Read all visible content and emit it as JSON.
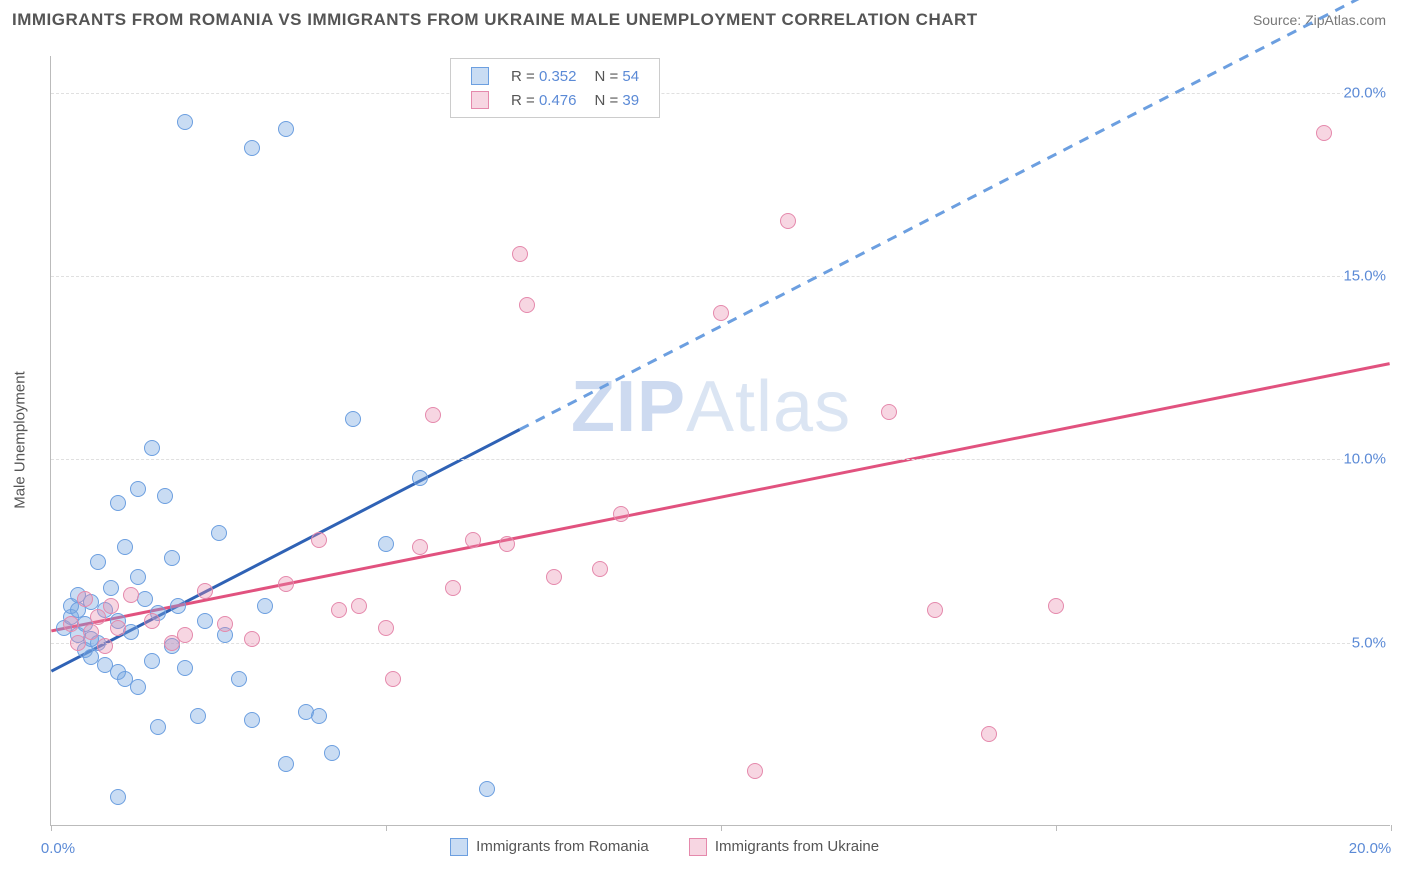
{
  "title": "IMMIGRANTS FROM ROMANIA VS IMMIGRANTS FROM UKRAINE MALE UNEMPLOYMENT CORRELATION CHART",
  "source": "Source: ZipAtlas.com",
  "y_axis_label": "Male Unemployment",
  "watermark_main": "ZIP",
  "watermark_sub": "Atlas",
  "chart": {
    "type": "scatter",
    "x_min": 0.0,
    "x_max": 20.0,
    "y_min": 0.0,
    "y_max": 21.0,
    "y_ticks": [
      5.0,
      10.0,
      15.0,
      20.0
    ],
    "y_tick_labels": [
      "5.0%",
      "10.0%",
      "15.0%",
      "20.0%"
    ],
    "x_ticks": [
      0.0,
      5.0,
      10.0,
      15.0,
      20.0
    ],
    "x_tick_label_left": "0.0%",
    "x_tick_label_right": "20.0%",
    "background_color": "#ffffff",
    "grid_color": "#e0e0e0",
    "axis_color": "#bbbbbb",
    "tick_label_color": "#5b8ad6",
    "point_radius": 8,
    "series": [
      {
        "key": "romania",
        "name": "Immigrants from Romania",
        "R": "0.352",
        "N": "54",
        "point_fill": "rgba(120,168,224,0.40)",
        "point_stroke": "#6c9fe0",
        "line_color": "#2f62b5",
        "points": [
          [
            0.2,
            5.4
          ],
          [
            0.3,
            5.7
          ],
          [
            0.3,
            6.0
          ],
          [
            0.4,
            5.2
          ],
          [
            0.4,
            6.3
          ],
          [
            0.5,
            4.8
          ],
          [
            0.5,
            5.5
          ],
          [
            0.6,
            6.1
          ],
          [
            0.6,
            4.6
          ],
          [
            0.7,
            7.2
          ],
          [
            0.7,
            5.0
          ],
          [
            0.8,
            5.9
          ],
          [
            0.8,
            4.4
          ],
          [
            0.9,
            6.5
          ],
          [
            1.0,
            8.8
          ],
          [
            1.0,
            4.2
          ],
          [
            1.0,
            5.6
          ],
          [
            1.1,
            7.6
          ],
          [
            1.1,
            4.0
          ],
          [
            1.2,
            5.3
          ],
          [
            1.3,
            9.2
          ],
          [
            1.3,
            3.8
          ],
          [
            1.4,
            6.2
          ],
          [
            1.5,
            10.3
          ],
          [
            1.5,
            4.5
          ],
          [
            1.6,
            5.8
          ],
          [
            1.6,
            2.7
          ],
          [
            1.7,
            9.0
          ],
          [
            1.8,
            7.3
          ],
          [
            1.8,
            4.9
          ],
          [
            1.9,
            6.0
          ],
          [
            2.0,
            4.3
          ],
          [
            2.0,
            19.2
          ],
          [
            2.2,
            3.0
          ],
          [
            2.3,
            5.6
          ],
          [
            2.5,
            8.0
          ],
          [
            2.6,
            5.2
          ],
          [
            2.8,
            4.0
          ],
          [
            3.0,
            18.5
          ],
          [
            3.0,
            2.9
          ],
          [
            3.2,
            6.0
          ],
          [
            3.5,
            1.7
          ],
          [
            3.5,
            19.0
          ],
          [
            3.8,
            3.1
          ],
          [
            4.0,
            3.0
          ],
          [
            4.2,
            2.0
          ],
          [
            4.5,
            11.1
          ],
          [
            5.0,
            7.7
          ],
          [
            5.5,
            9.5
          ],
          [
            6.5,
            1.0
          ],
          [
            1.0,
            0.8
          ],
          [
            1.3,
            6.8
          ],
          [
            0.4,
            5.9
          ],
          [
            0.6,
            5.1
          ]
        ],
        "trend": {
          "x1": 0.0,
          "y1": 4.2,
          "x2": 7.0,
          "y2": 10.8,
          "x2_dash": 20.0,
          "y2_dash": 23.0
        }
      },
      {
        "key": "ukraine",
        "name": "Immigrants from Ukraine",
        "R": "0.476",
        "N": "39",
        "point_fill": "rgba(232,137,172,0.35)",
        "point_stroke": "#e589ac",
        "line_color": "#e1527f",
        "points": [
          [
            0.3,
            5.5
          ],
          [
            0.4,
            5.0
          ],
          [
            0.5,
            6.2
          ],
          [
            0.6,
            5.3
          ],
          [
            0.7,
            5.7
          ],
          [
            0.8,
            4.9
          ],
          [
            0.9,
            6.0
          ],
          [
            1.0,
            5.4
          ],
          [
            1.2,
            6.3
          ],
          [
            1.5,
            5.6
          ],
          [
            1.8,
            5.0
          ],
          [
            2.0,
            5.2
          ],
          [
            2.3,
            6.4
          ],
          [
            2.6,
            5.5
          ],
          [
            3.0,
            5.1
          ],
          [
            3.5,
            6.6
          ],
          [
            4.0,
            7.8
          ],
          [
            4.3,
            5.9
          ],
          [
            4.6,
            6.0
          ],
          [
            5.0,
            5.4
          ],
          [
            5.1,
            4.0
          ],
          [
            5.5,
            7.6
          ],
          [
            5.7,
            11.2
          ],
          [
            6.0,
            6.5
          ],
          [
            6.8,
            7.7
          ],
          [
            7.0,
            15.6
          ],
          [
            7.1,
            14.2
          ],
          [
            7.5,
            6.8
          ],
          [
            8.2,
            7.0
          ],
          [
            8.5,
            8.5
          ],
          [
            10.0,
            14.0
          ],
          [
            10.5,
            1.5
          ],
          [
            11.0,
            16.5
          ],
          [
            12.5,
            11.3
          ],
          [
            13.2,
            5.9
          ],
          [
            14.0,
            2.5
          ],
          [
            15.0,
            6.0
          ],
          [
            19.0,
            18.9
          ],
          [
            6.3,
            7.8
          ]
        ],
        "trend": {
          "x1": 0.0,
          "y1": 5.3,
          "x2": 20.0,
          "y2": 12.6
        }
      }
    ]
  },
  "legend_top": {
    "R_label": "R =",
    "N_label": "N ="
  },
  "legend_bottom": {
    "romania": "Immigrants from Romania",
    "ukraine": "Immigrants from Ukraine"
  }
}
